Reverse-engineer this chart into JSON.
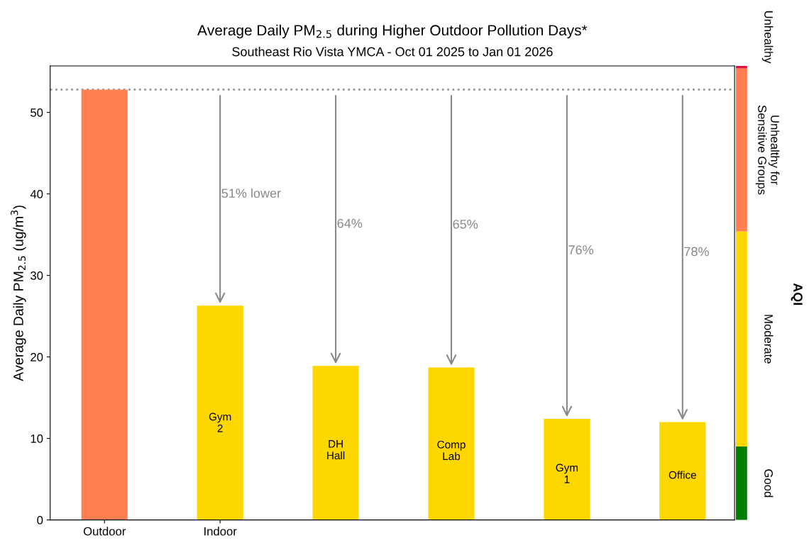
{
  "chart_data": [
    {
      "type": "bar",
      "title": "Average Daily PM$_{2.5}$ during Higher Outdoor Pollution Days*",
      "subtitle": "Southeast Rio Vista YMCA - Oct 01 2025 to Jan 01 2026",
      "ylabel": "Average Daily PM$_{2.5}$ (ug/m$^{3}$)",
      "categories": [
        "Outdoor",
        "Indoor",
        null,
        null,
        null,
        null
      ],
      "values": [
        52.8,
        26.3,
        18.9,
        18.7,
        12.4,
        12.0
      ],
      "colors": [
        "#ff7f50",
        "#ffd700",
        "#ffd700",
        "#ffd700",
        "#ffd700",
        "#ffd700"
      ],
      "value_labels": [
        null,
        "Gym\n2",
        "DH\nHall",
        "Comp\nLab",
        "Gym\n1",
        "Office"
      ],
      "ylim": [
        0,
        55.7
      ],
      "yticks": [
        0,
        10,
        20,
        30,
        40,
        50
      ],
      "ref_lines": [
        {
          "axis": "y",
          "value": 52.8,
          "color": "#999999",
          "line_style": "dotted"
        }
      ],
      "annotations": [
        "51% lower",
        "64%",
        "65%",
        "76%",
        "78%"
      ],
      "legend": false,
      "grid": false
    },
    {
      "type": "bar",
      "stacked": true,
      "categories": [
        null
      ],
      "series": [
        {
          "name": "Good",
          "color": "#008000",
          "values": [
            9.0
          ]
        },
        {
          "name": "Moderate",
          "color": "#ffd700",
          "values": [
            26.4
          ]
        },
        {
          "name": "Unhealthy for\nSensitive Groups",
          "color": "#ff7f50",
          "values": [
            20.0
          ]
        },
        {
          "name": "Unhealthy",
          "color": "#dc143c",
          "values": [
            0.3
          ]
        }
      ],
      "ylim": [
        0,
        55.7
      ],
      "tick_labels": false,
      "annotations": [
        "AQI"
      ]
    }
  ]
}
